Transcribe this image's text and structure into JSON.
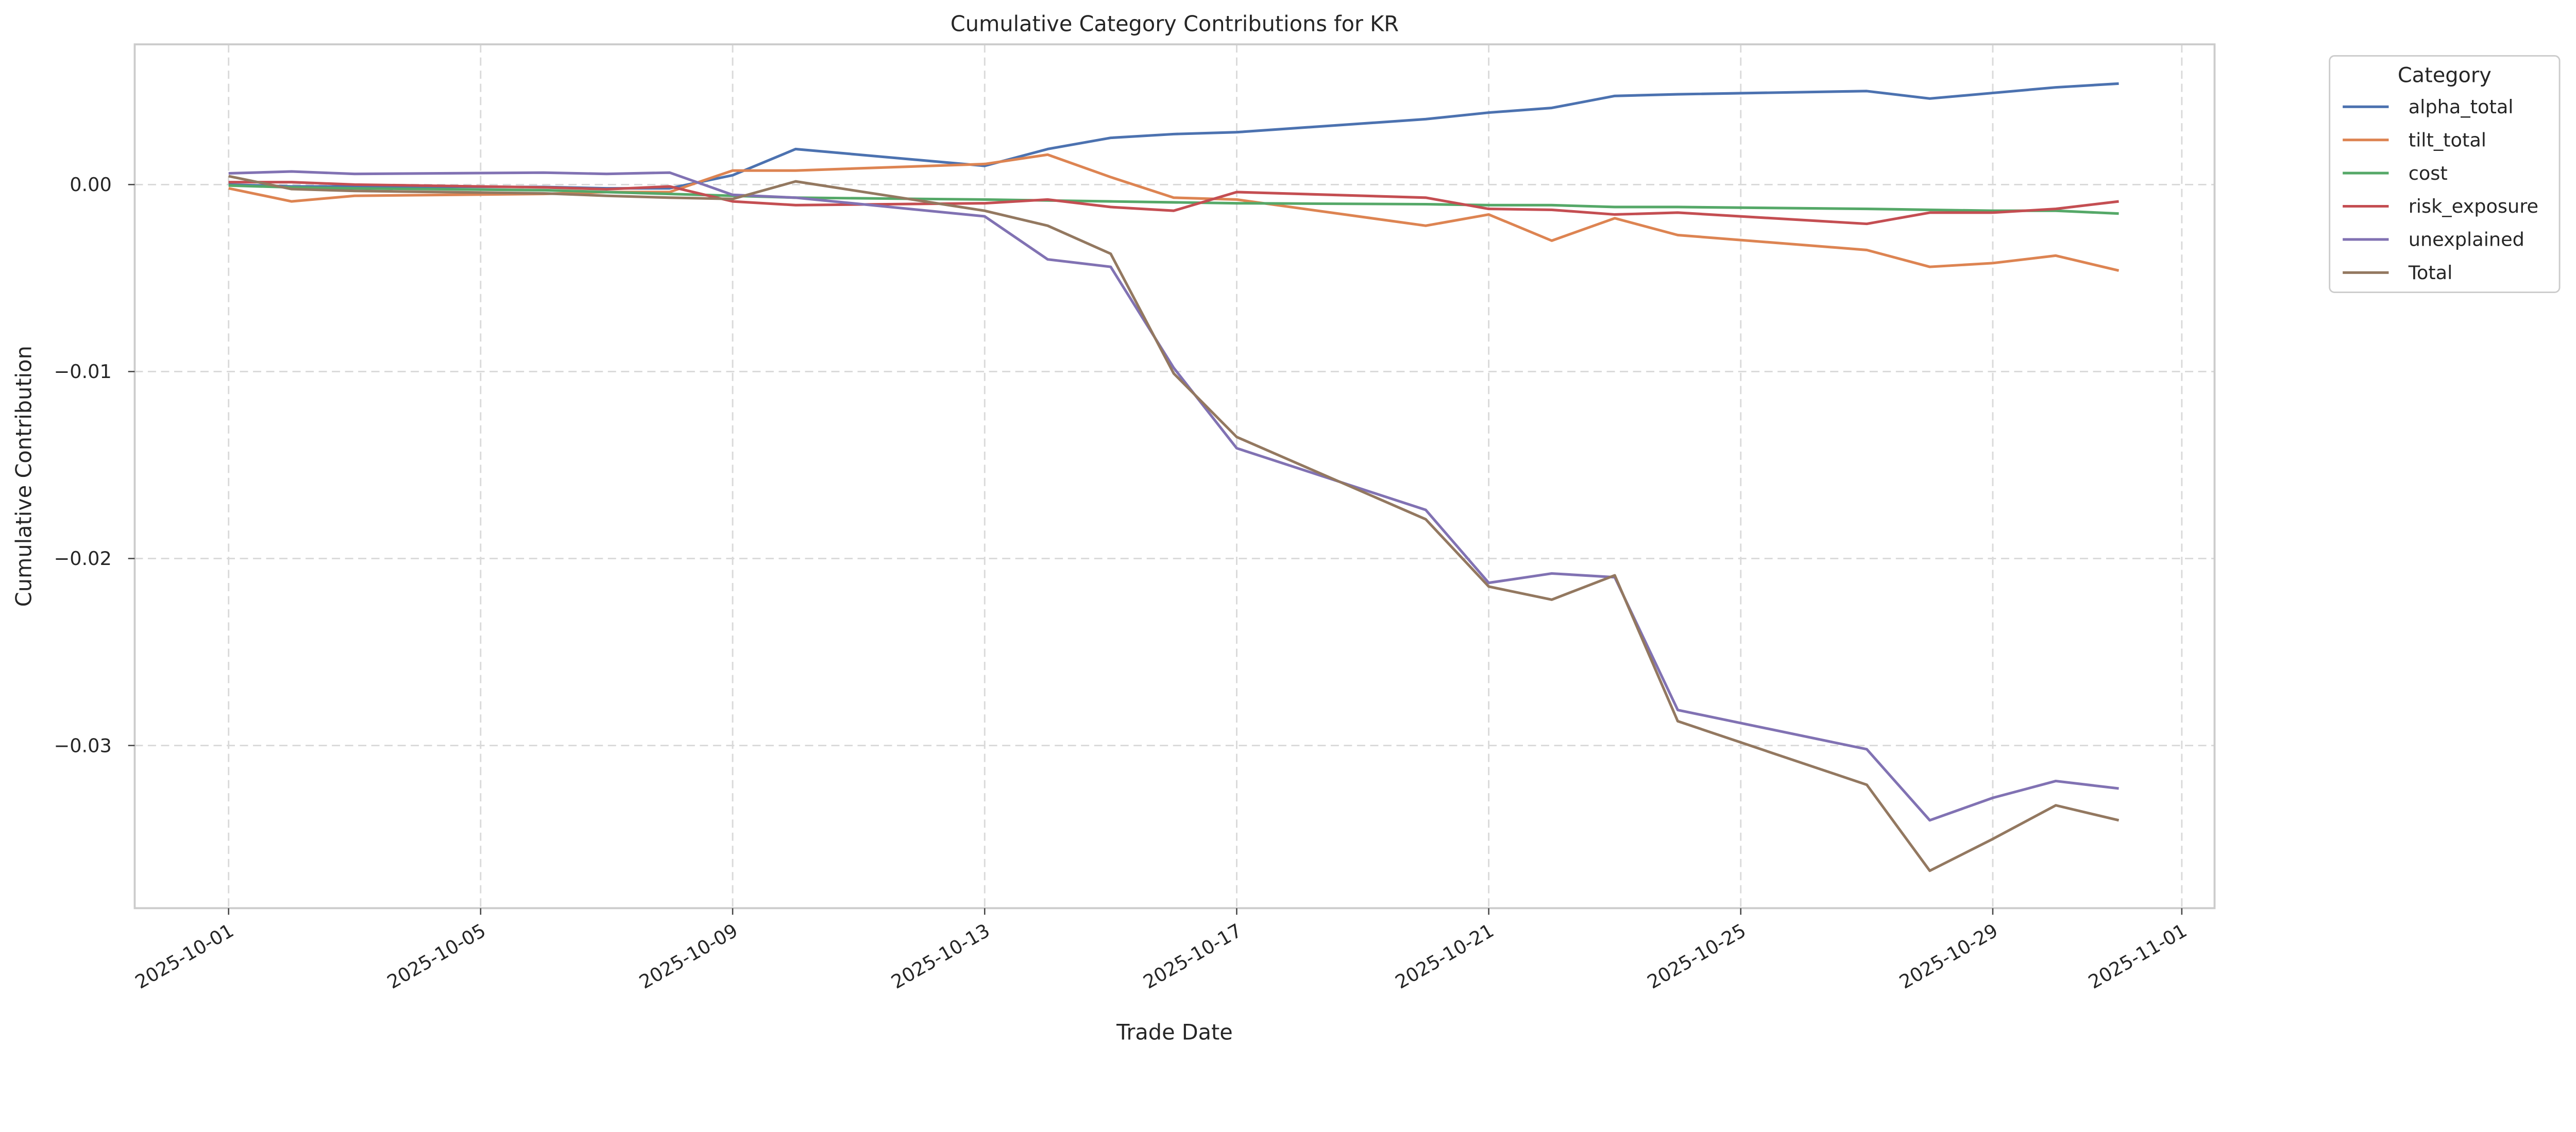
{
  "chart_data": {
    "type": "line",
    "title": "Cumulative Category Contributions for KR",
    "xlabel": "Trade Date",
    "ylabel": "Cumulative Contribution",
    "grid": true,
    "legend_title": "Category",
    "legend_placement": "outside-top-right",
    "x": [
      "2025-10-01",
      "2025-10-02",
      "2025-10-03",
      "2025-10-06",
      "2025-10-07",
      "2025-10-08",
      "2025-10-09",
      "2025-10-10",
      "2025-10-13",
      "2025-10-14",
      "2025-10-15",
      "2025-10-16",
      "2025-10-17",
      "2025-10-20",
      "2025-10-21",
      "2025-10-22",
      "2025-10-23",
      "2025-10-24",
      "2025-10-27",
      "2025-10-28",
      "2025-10-29",
      "2025-10-30",
      "2025-10-31"
    ],
    "xlim": [
      "2025-09-29.5",
      "2025-11-01.5"
    ],
    "ylim": [
      -0.0387,
      0.0075
    ],
    "x_ticks": [
      "2025-10-01",
      "2025-10-05",
      "2025-10-09",
      "2025-10-13",
      "2025-10-17",
      "2025-10-21",
      "2025-10-25",
      "2025-10-29",
      "2025-11-01"
    ],
    "y_ticks": [
      {
        "value": 0.0,
        "label": "0.00"
      },
      {
        "value": -0.01,
        "label": "−0.01"
      },
      {
        "value": -0.02,
        "label": "−0.02"
      },
      {
        "value": -0.03,
        "label": "−0.03"
      }
    ],
    "series": [
      {
        "name": "alpha_total",
        "color": "#4c72b0",
        "values": [
          0.0,
          -0.0001,
          -0.0001,
          -0.00013,
          -0.0002,
          -0.0002,
          0.0005,
          0.0019,
          0.001,
          0.0019,
          0.0025,
          0.0027,
          0.0028,
          0.0035,
          0.00385,
          0.0041,
          0.00474,
          0.00483,
          0.005,
          0.0046,
          0.0049,
          0.0052,
          0.0054
        ]
      },
      {
        "name": "tilt_total",
        "color": "#dd8452",
        "values": [
          -0.0002,
          -0.0009,
          -0.0006,
          -0.0005,
          -0.0004,
          -0.0004,
          0.00075,
          0.00075,
          0.0011,
          0.0016,
          0.0004,
          -0.0007,
          -0.0008,
          -0.0022,
          -0.0016,
          -0.003,
          -0.0018,
          -0.0027,
          -0.0035,
          -0.0044,
          -0.0042,
          -0.0038,
          -0.0046
        ]
      },
      {
        "name": "cost",
        "color": "#55a868",
        "values": [
          -5e-05,
          -0.00015,
          -0.0002,
          -0.0003,
          -0.0004,
          -0.0005,
          -0.0006,
          -0.0007,
          -0.0008,
          -0.00085,
          -0.0009,
          -0.00095,
          -0.001,
          -0.00105,
          -0.0011,
          -0.0011,
          -0.0012,
          -0.0012,
          -0.0013,
          -0.00135,
          -0.0014,
          -0.0014,
          -0.00155
        ]
      },
      {
        "name": "risk_exposure",
        "color": "#c44e52",
        "values": [
          0.00013,
          0.00013,
          0.0,
          -0.00015,
          -0.00025,
          -0.0001,
          -0.0009,
          -0.0011,
          -0.001,
          -0.0008,
          -0.0012,
          -0.0014,
          -0.0004,
          -0.0007,
          -0.0013,
          -0.00135,
          -0.0016,
          -0.0015,
          -0.0021,
          -0.0015,
          -0.0015,
          -0.0013,
          -0.0009
        ]
      },
      {
        "name": "unexplained",
        "color": "#8172b3",
        "values": [
          0.0006,
          0.0007,
          0.00057,
          0.00064,
          0.00057,
          0.00064,
          -0.00055,
          -0.0007,
          -0.0017,
          -0.004,
          -0.0044,
          -0.0098,
          -0.0141,
          -0.0174,
          -0.0213,
          -0.0208,
          -0.021,
          -0.0281,
          -0.0302,
          -0.034,
          -0.0328,
          -0.0319,
          -0.0323
        ]
      },
      {
        "name": "Total",
        "color": "#937860",
        "values": [
          0.00045,
          -0.00024,
          -0.00034,
          -0.00047,
          -0.0006,
          -0.0007,
          -0.00077,
          0.00017,
          -0.0014,
          -0.0022,
          -0.0037,
          -0.0101,
          -0.0135,
          -0.0179,
          -0.0215,
          -0.0222,
          -0.0209,
          -0.0287,
          -0.0321,
          -0.0367,
          -0.035,
          -0.0332,
          -0.034
        ]
      }
    ]
  }
}
